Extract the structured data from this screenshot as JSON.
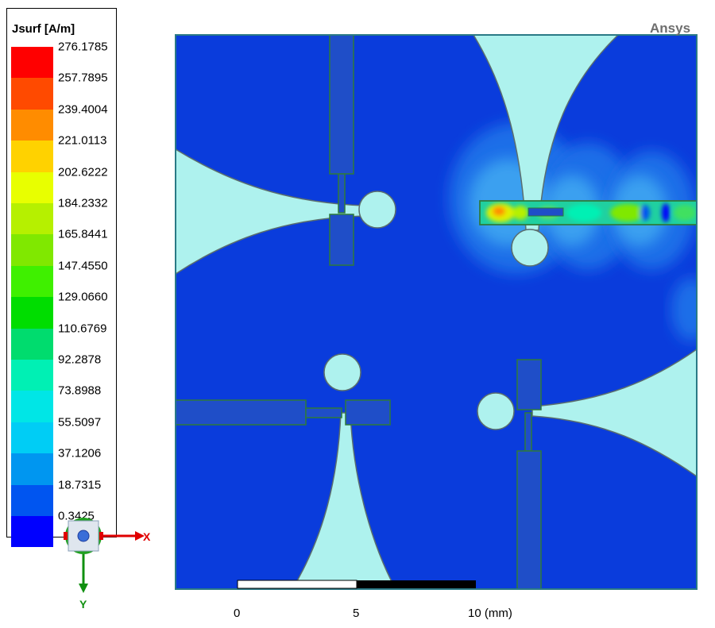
{
  "legend": {
    "title": "Jsurf [A/m]",
    "levels": [
      "276.1785",
      "257.7895",
      "239.4004",
      "221.0113",
      "202.6222",
      "184.2332",
      "165.8441",
      "147.4550",
      "129.0660",
      "110.6769",
      "92.2878",
      "73.8988",
      "55.5097",
      "37.1206",
      "18.7315",
      "0.3425"
    ],
    "colors": [
      "#ff0000",
      "#ff4a00",
      "#ff8c00",
      "#ffd200",
      "#e8ff00",
      "#b6f000",
      "#80e800",
      "#3ff000",
      "#00dd00",
      "#00dc6e",
      "#00f0b4",
      "#00e6e6",
      "#00cdf5",
      "#0096f0",
      "#0055f0",
      "#0000ff"
    ]
  },
  "brand": "Ansys",
  "scale_bar": {
    "labels": [
      "0",
      "5",
      "10 (mm)"
    ]
  },
  "triad": {
    "x_label": "X",
    "y_label": "Y"
  },
  "colors": {
    "background_field": "#0a3cdc",
    "slot": "#aef2ee",
    "line": "#1a5a46",
    "frame": "#2a7a86"
  }
}
